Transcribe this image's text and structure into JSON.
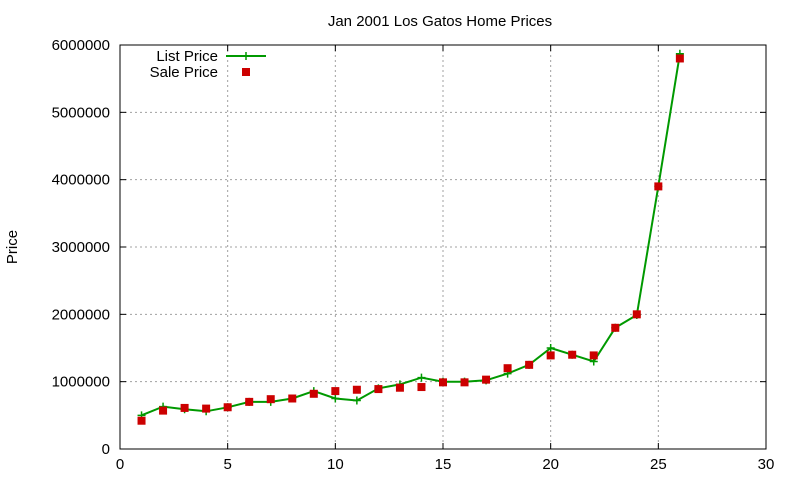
{
  "chart_data": {
    "type": "line",
    "title": "Jan 2001 Los Gatos Home Prices",
    "xlabel": "",
    "ylabel": "Price",
    "xlim": [
      0,
      30
    ],
    "ylim": [
      0,
      6000000
    ],
    "xticks": [
      "0",
      "5",
      "10",
      "15",
      "20",
      "25",
      "30"
    ],
    "yticks": [
      "0",
      "1000000",
      "2000000",
      "3000000",
      "4000000",
      "5000000",
      "6000000"
    ],
    "grid": true,
    "legend_position": "top-left",
    "series": [
      {
        "name": "List Price",
        "style": "line-with-plus-markers",
        "color": "#009900",
        "x": [
          1,
          2,
          3,
          4,
          5,
          6,
          7,
          8,
          9,
          10,
          11,
          12,
          13,
          14,
          15,
          16,
          17,
          18,
          19,
          20,
          21,
          22,
          23,
          24,
          25,
          26
        ],
        "y": [
          500000,
          630000,
          590000,
          560000,
          620000,
          700000,
          700000,
          750000,
          860000,
          750000,
          720000,
          900000,
          960000,
          1060000,
          1000000,
          1000000,
          1020000,
          1120000,
          1250000,
          1500000,
          1400000,
          1300000,
          1800000,
          1990000,
          3900000,
          5870000
        ]
      },
      {
        "name": "Sale Price",
        "style": "square-markers",
        "color": "#cc0000",
        "x": [
          1,
          2,
          3,
          4,
          5,
          6,
          7,
          8,
          9,
          10,
          11,
          12,
          13,
          14,
          15,
          16,
          17,
          18,
          19,
          20,
          21,
          22,
          23,
          24,
          25,
          26
        ],
        "y": [
          420000,
          570000,
          610000,
          600000,
          620000,
          700000,
          740000,
          750000,
          820000,
          860000,
          880000,
          890000,
          910000,
          920000,
          990000,
          990000,
          1030000,
          1200000,
          1250000,
          1390000,
          1400000,
          1390000,
          1800000,
          2000000,
          3900000,
          5800000
        ]
      }
    ]
  }
}
